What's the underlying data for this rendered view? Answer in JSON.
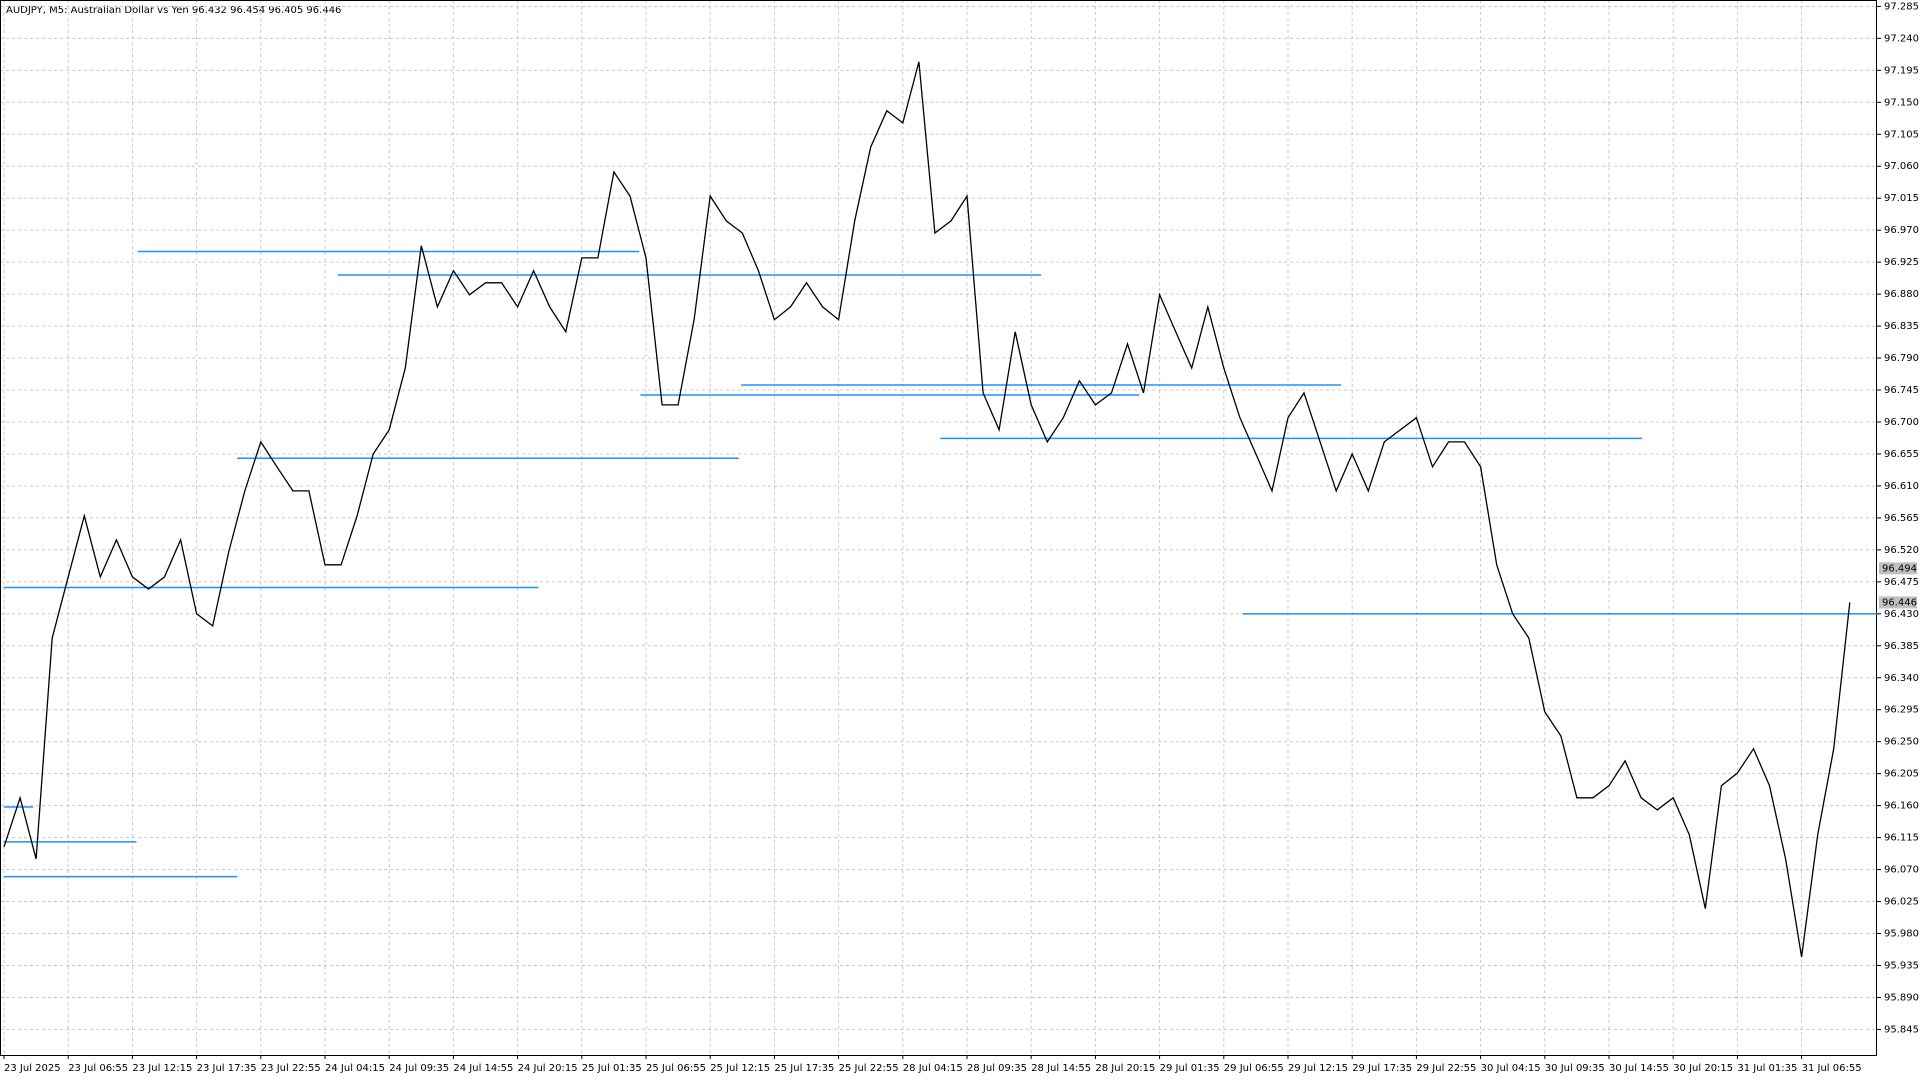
{
  "chart_data": {
    "type": "line",
    "title": "AUDJPY, M5:  Australian Dollar vs Yen  96.432 96.454 96.405 96.446",
    "categories": [
      "23 Jul 2025",
      null,
      null,
      null,
      "23 Jul 06:55",
      null,
      null,
      null,
      "23 Jul 12:15",
      null,
      null,
      null,
      "23 Jul 17:35",
      null,
      null,
      null,
      "23 Jul 22:55",
      null,
      null,
      null,
      "24 Jul 04:15",
      null,
      null,
      null,
      "24 Jul 09:35",
      null,
      null,
      null,
      "24 Jul 14:55",
      null,
      null,
      null,
      "24 Jul 20:15",
      null,
      null,
      null,
      "25 Jul 01:35",
      null,
      null,
      null,
      "25 Jul 06:55",
      null,
      null,
      null,
      "25 Jul 12:15",
      null,
      null,
      null,
      "25 Jul 17:35",
      null,
      null,
      null,
      "25 Jul 22:55",
      null,
      null,
      null,
      "28 Jul 04:15",
      null,
      null,
      null,
      "28 Jul 09:35",
      null,
      null,
      null,
      "28 Jul 14:55",
      null,
      null,
      null,
      "28 Jul 20:15",
      null,
      null,
      null,
      "29 Jul 01:35",
      null,
      null,
      null,
      "29 Jul 06:55",
      null,
      null,
      null,
      "29 Jul 12:15",
      null,
      null,
      null,
      "29 Jul 17:35",
      null,
      null,
      null,
      "29 Jul 22:55",
      null,
      null,
      null,
      "30 Jul 04:15",
      null,
      null,
      null,
      "30 Jul 09:35",
      null,
      null,
      null,
      "30 Jul 14:55",
      null,
      null,
      null,
      "30 Jul 20:15",
      null,
      null,
      null,
      "31 Jul 01:35",
      null,
      null,
      null,
      "31 Jul 06:55",
      null,
      null,
      null
    ],
    "series": [
      {
        "name": "AUDJPY",
        "color": "#000000",
        "values": [
          96.102,
          96.171,
          96.085,
          96.396,
          96.482,
          96.568,
          96.482,
          96.534,
          96.482,
          96.465,
          96.482,
          96.534,
          96.43,
          96.413,
          96.517,
          96.603,
          96.672,
          96.637,
          96.603,
          96.603,
          96.499,
          96.499,
          96.568,
          96.655,
          96.689,
          96.776,
          96.948,
          96.862,
          96.913,
          96.879,
          96.896,
          96.896,
          96.862,
          96.913,
          96.862,
          96.827,
          96.931,
          96.931,
          97.052,
          97.018,
          96.931,
          96.724,
          96.724,
          96.844,
          97.018,
          96.983,
          96.966,
          96.913,
          96.844,
          96.862,
          96.896,
          96.862,
          96.844,
          96.983,
          97.087,
          97.138,
          97.121,
          97.207,
          96.966,
          96.983,
          97.018,
          96.741,
          96.689,
          96.827,
          96.724,
          96.672,
          96.706,
          96.758,
          96.724,
          96.741,
          96.81,
          96.741,
          96.879,
          96.827,
          96.776,
          96.862,
          96.776,
          96.706,
          96.655,
          96.603,
          96.706,
          96.741,
          96.672,
          96.603,
          96.655,
          96.603,
          96.672,
          96.689,
          96.706,
          96.637,
          96.672,
          96.672,
          96.637,
          96.499,
          96.43,
          96.396,
          96.292,
          96.258,
          96.171,
          96.171,
          96.188,
          96.223,
          96.171,
          96.154,
          96.171,
          96.119,
          96.015,
          96.188,
          96.206,
          96.24,
          96.188,
          96.085,
          95.947,
          96.119,
          96.24,
          96.446
        ]
      }
    ],
    "levels": {
      "color": "#1e90ff",
      "values": [
        96.94,
        96.907,
        96.752,
        96.738,
        96.677,
        96.649,
        96.467,
        96.43,
        96.158,
        96.109,
        96.06
      ]
    },
    "price_labels": {
      "color": "#c0c0c0",
      "values": [
        96.494,
        96.446
      ]
    },
    "ylim": [
      95.809,
      97.294
    ],
    "yticks": [
      97.285,
      {
        "value": 97.24,
        "label": "97.240"
      },
      97.195,
      {
        "value": 97.15,
        "label": "97.150"
      },
      97.105,
      {
        "value": 97.06,
        "label": "97.060"
      },
      97.015,
      {
        "value": 96.97,
        "label": "96.970"
      },
      96.925,
      {
        "value": 96.88,
        "label": "96.880"
      },
      96.835,
      {
        "value": 96.79,
        "label": "96.790"
      },
      96.745,
      {
        "value": 96.7,
        "label": "96.700"
      },
      96.655,
      {
        "value": 96.61,
        "label": "96.610"
      },
      96.565,
      {
        "value": 96.52,
        "label": "96.520"
      },
      96.475,
      {
        "value": 96.43,
        "label": "96.430"
      },
      96.385,
      {
        "value": 96.34,
        "label": "96.340"
      },
      96.295,
      {
        "value": 96.25,
        "label": "96.250"
      },
      96.205,
      {
        "value": 96.16,
        "label": "96.160"
      },
      96.115,
      {
        "value": 96.07,
        "label": "96.070"
      },
      96.025,
      {
        "value": 95.98,
        "label": "95.980"
      },
      95.935,
      {
        "value": 95.89,
        "label": "95.890"
      },
      95.845
    ],
    "grid": true
  }
}
